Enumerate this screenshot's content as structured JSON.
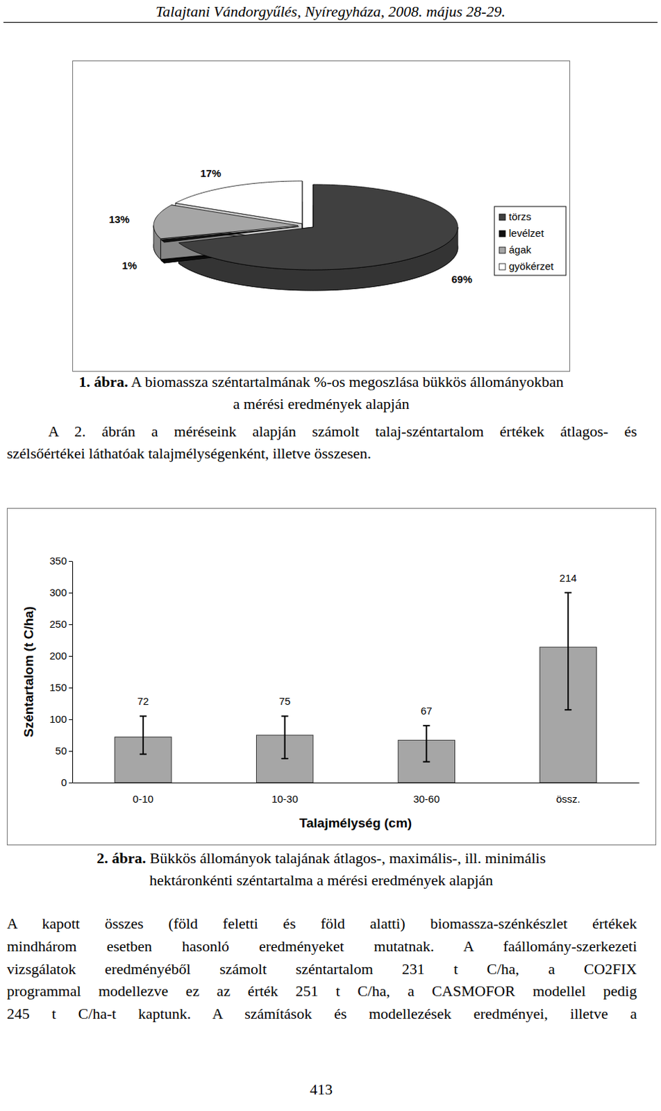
{
  "header": "Talajtani Vándorgyűlés, Nyíregyháza, 2008. május 28-29.",
  "chart_data": [
    {
      "type": "pie",
      "categories": [
        "törzs",
        "levélzet",
        "ágak",
        "gyökérzet"
      ],
      "values": [
        69,
        1,
        13,
        17
      ],
      "value_labels": [
        "69%",
        "1%",
        "13%",
        "17%"
      ],
      "colors": [
        "#404040",
        "#111111",
        "#a6a6a6",
        "#ffffff"
      ],
      "data_labels": true,
      "legend": "right"
    },
    {
      "type": "bar",
      "x_label": "Talajmélység (cm)",
      "y_label": "Széntartalom (t C/ha)",
      "categories": [
        "0-10",
        "10-30",
        "30-60",
        "össz."
      ],
      "values": [
        72,
        75,
        67,
        214
      ],
      "min_values": [
        45,
        38,
        33,
        115
      ],
      "max_values": [
        105,
        105,
        90,
        300
      ],
      "color": "#a6a6a6",
      "ylim": [
        0,
        350
      ],
      "yticks": [
        0,
        50,
        100,
        150,
        200,
        250,
        300,
        350
      ],
      "data_labels": true,
      "grid": false
    }
  ],
  "captions": [
    {
      "label": "1. ábra.",
      "lines": [
        "A biomassza széntartalmának %-os megoszlása bükkös állományokban",
        "a mérési eredmények alapján"
      ]
    },
    {
      "label": "2. ábra.",
      "lines": [
        "Bükkös állományok talajának átlagos-, maximális-, ill. minimális",
        "hektáronkénti széntartalma a mérési eredmények alapján"
      ]
    }
  ],
  "paragraphs": [
    {
      "lines": [
        "A 2. ábrán a méréseink alapján számolt talaj-széntartalom értékek átlagos- és",
        "szélsőértékei láthatóak talajmélységenként, illetve összesen."
      ]
    },
    {
      "lines": [
        "A kapott összes (föld feletti és föld alatti) biomassza-szénkészlet értékek",
        "mindhárom esetben hasonló eredményeket mutatnak. A faállomány-szerkezeti",
        "vizsgálatok eredményéből számolt széntartalom 231 t C/ha, a CO2FIX",
        "programmal modellezve ez az érték 251 t C/ha, a CASMOFOR modellel pedig",
        "245 t C/ha-t kaptunk. A számítások és modellezések eredményei, illetve a"
      ]
    }
  ],
  "page_number": "413"
}
